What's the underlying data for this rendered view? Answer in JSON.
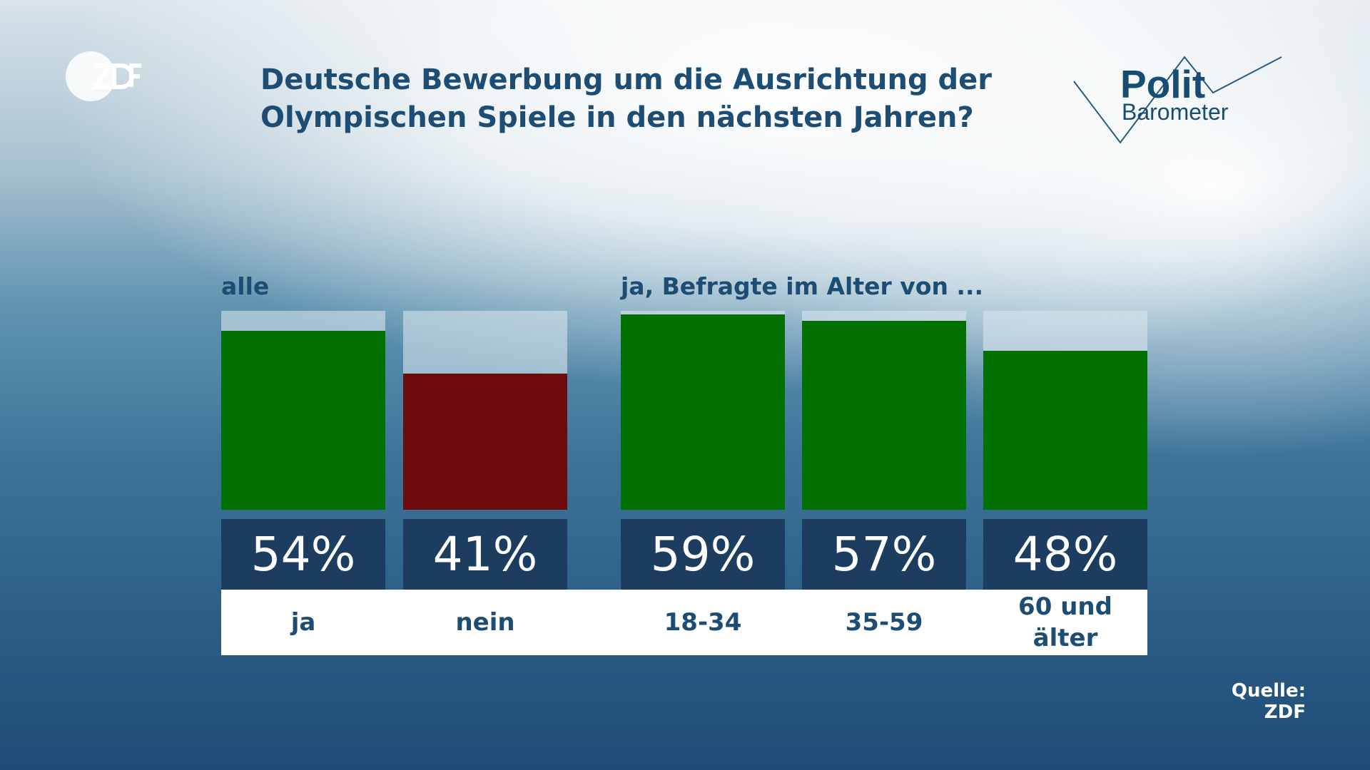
{
  "branding": {
    "logo_text": "ZDF",
    "politbarometer_line1": "Polit",
    "politbarometer_line2": "Barometer",
    "colors": {
      "title": "#1d4d72",
      "value_box": "#1c3d60"
    }
  },
  "title": {
    "line1": "Deutsche Bewerbung um die Ausrichtung der",
    "line2": "Olympischen Spiele in den nächsten Jahren?"
  },
  "source": "Quelle: ZDF",
  "chart_data": {
    "type": "bar",
    "title": "Deutsche Bewerbung um die Ausrichtung der Olympischen Spiele in den nächsten Jahren?",
    "unit": "%",
    "ylim": [
      0,
      60
    ],
    "groups": [
      {
        "label": "alle",
        "bars": [
          {
            "category": "ja",
            "value": 54,
            "value_label": "54%",
            "color": "#027101"
          },
          {
            "category": "nein",
            "value": 41,
            "value_label": "41%",
            "color": "#6e0b0d"
          }
        ]
      },
      {
        "label": "ja, Befragte im Alter von ...",
        "bars": [
          {
            "category": "18-34",
            "value": 59,
            "value_label": "59%",
            "color": "#027101"
          },
          {
            "category": "35-59",
            "value": 57,
            "value_label": "57%",
            "color": "#027101"
          },
          {
            "category": "60 und älter",
            "value": 48,
            "value_label": "48%",
            "color": "#027101"
          }
        ]
      }
    ]
  }
}
